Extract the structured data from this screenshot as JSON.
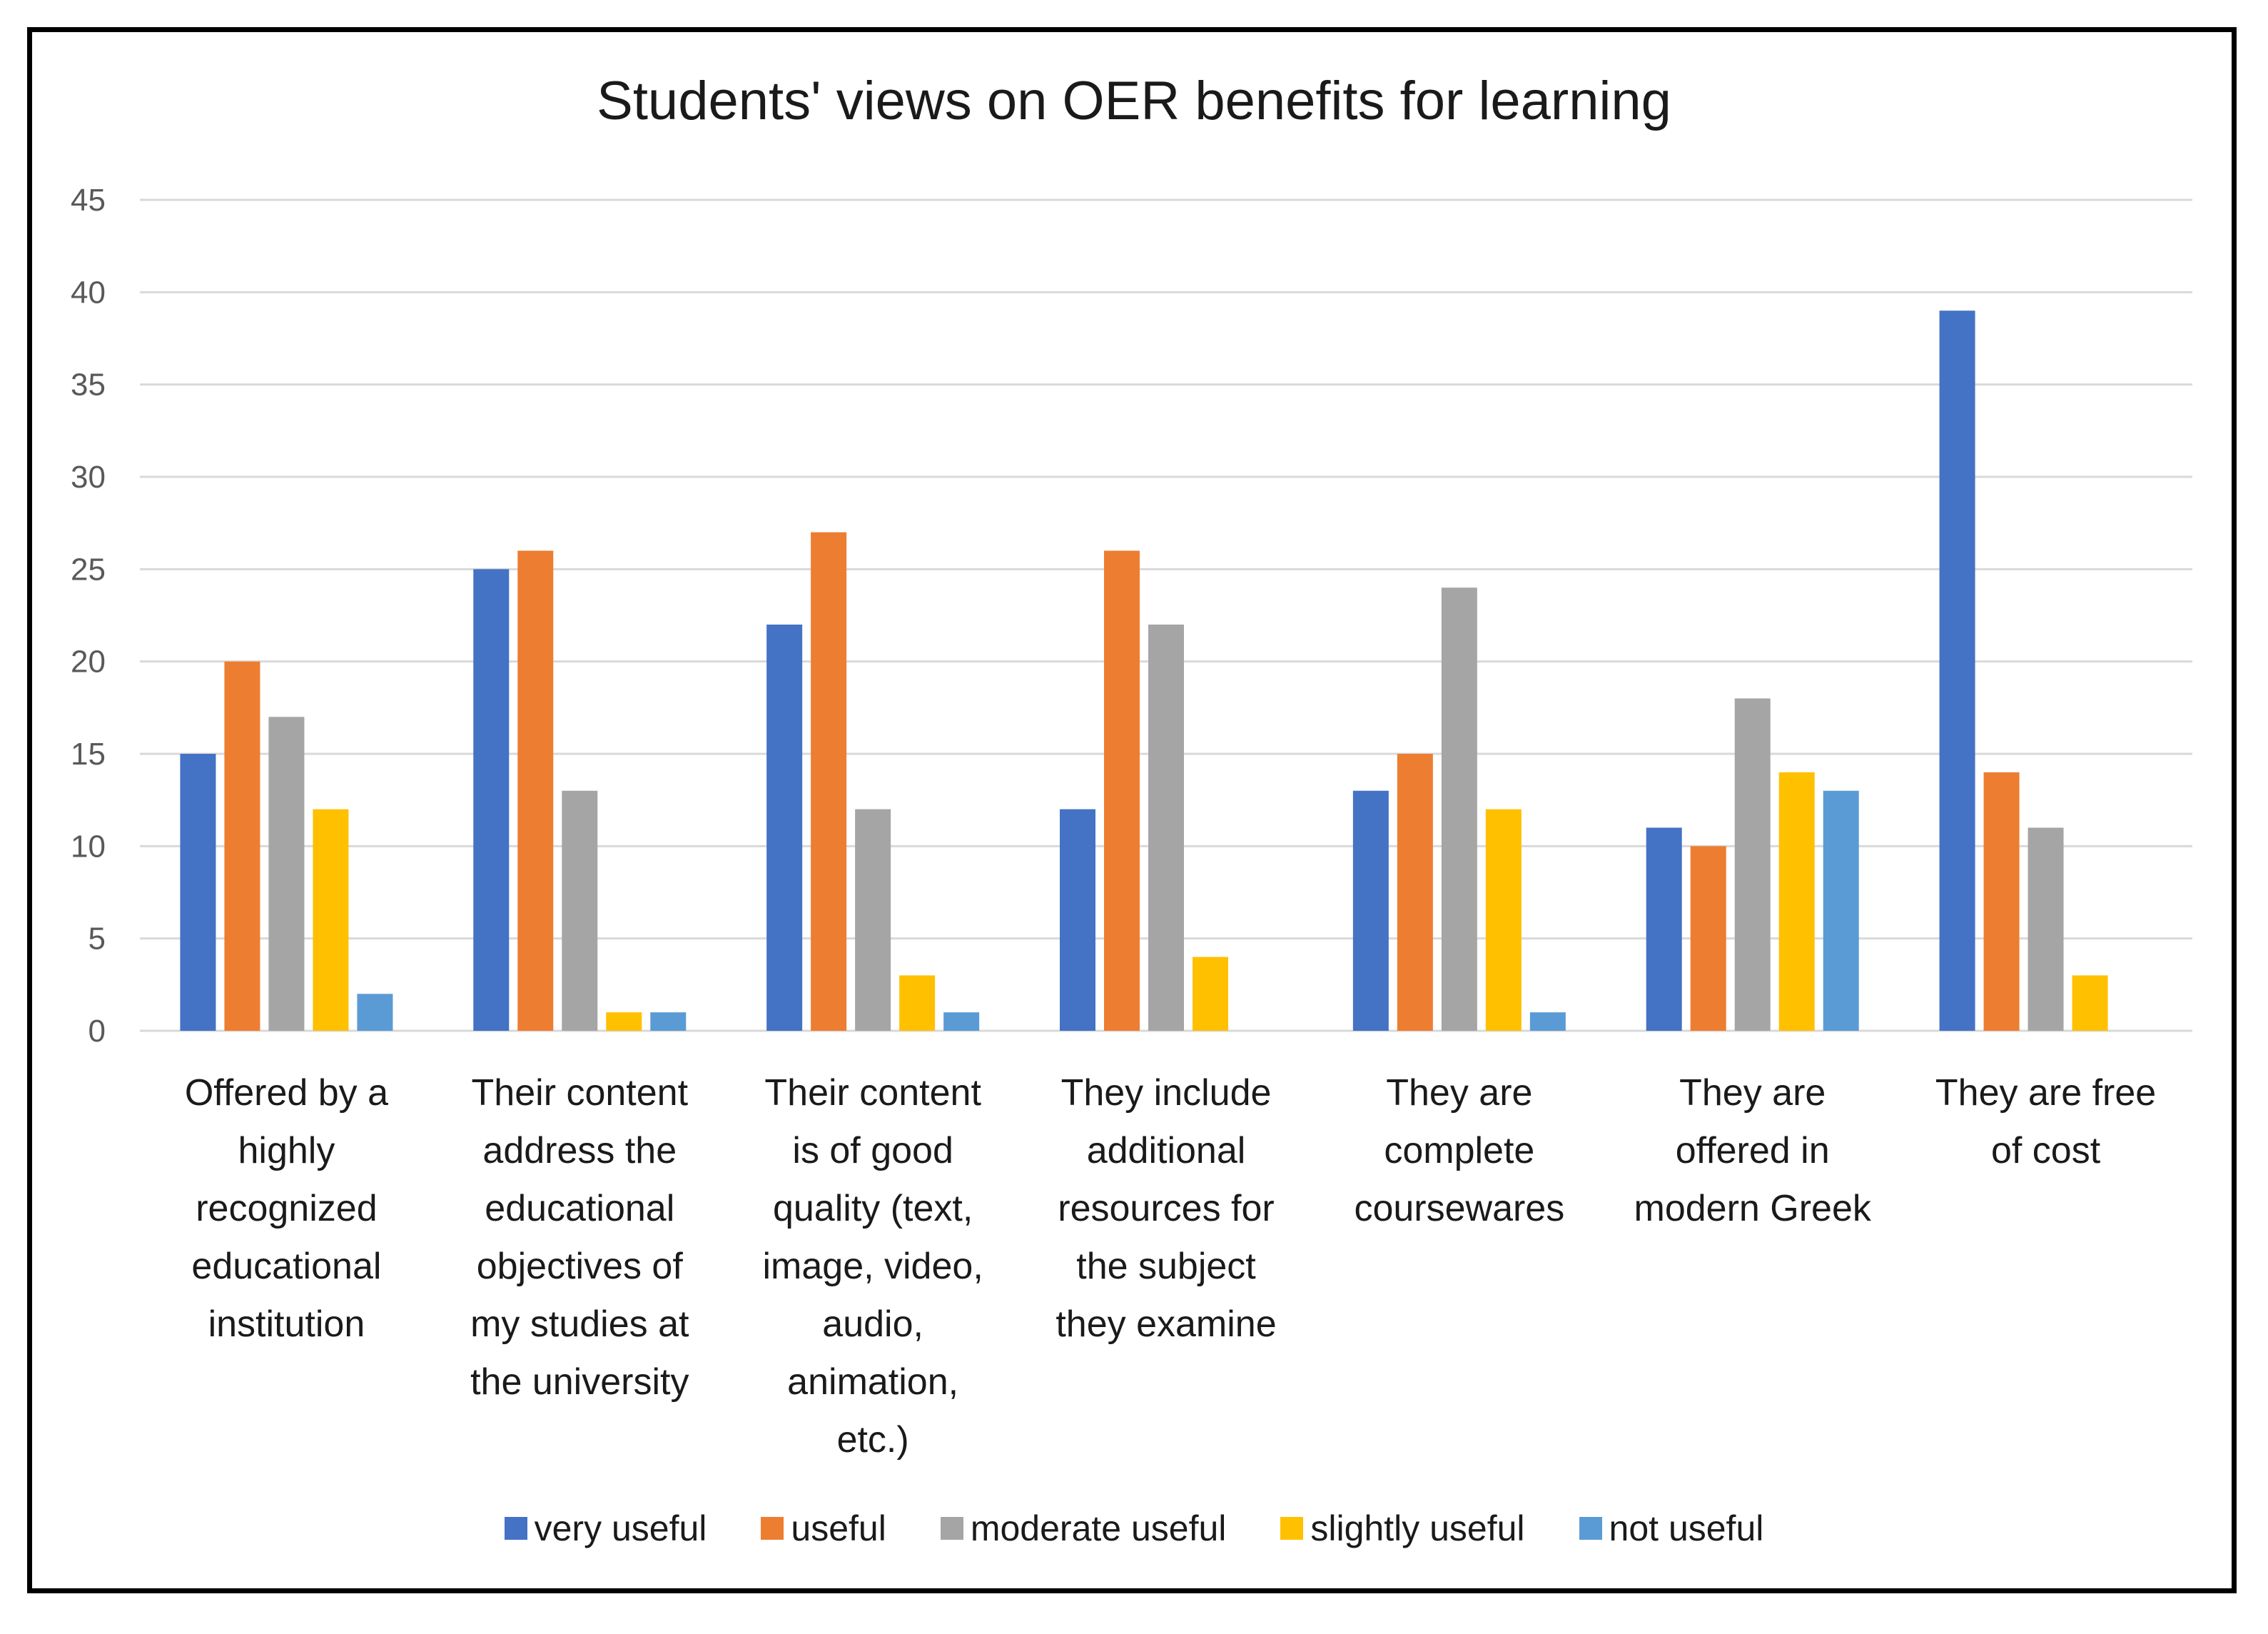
{
  "chart_data": {
    "type": "bar",
    "title": "Students' views on OER benefits for learning",
    "xlabel": "",
    "ylabel": "",
    "ylim": [
      0,
      45
    ],
    "yticks": [
      0,
      5,
      10,
      15,
      20,
      25,
      30,
      35,
      40,
      45
    ],
    "grid": true,
    "legend_position": "bottom",
    "categories": [
      "Offered by a highly recognized educational institution",
      "Their content address the educational objectives of my studies at the university",
      "Their content is of good quality (text, image, video, audio, animation, etc.)",
      "They include additional resources for the subject they examine",
      "They are complete coursewares",
      "They are offered in modern Greek",
      "They are free of cost"
    ],
    "category_lines": [
      [
        "Offered by a",
        "highly",
        "recognized",
        "educational",
        "institution"
      ],
      [
        "Their content",
        "address the",
        "educational",
        "objectives of",
        "my studies at",
        "the university"
      ],
      [
        "Their content",
        "is of good",
        "quality (text,",
        "image, video,",
        "audio,",
        "animation,",
        "etc.)"
      ],
      [
        "They include",
        "additional",
        "resources for",
        "the subject",
        "they examine"
      ],
      [
        "They are",
        "complete",
        "coursewares"
      ],
      [
        "They are",
        "offered in",
        "modern Greek"
      ],
      [
        "They are free",
        "of cost"
      ]
    ],
    "series": [
      {
        "name": "very useful",
        "color": "#4472C4",
        "values": [
          15,
          25,
          22,
          12,
          13,
          11,
          39
        ]
      },
      {
        "name": "useful",
        "color": "#ED7D31",
        "values": [
          20,
          26,
          27,
          26,
          15,
          10,
          14
        ]
      },
      {
        "name": "moderate useful",
        "color": "#A5A5A5",
        "values": [
          17,
          13,
          12,
          22,
          24,
          18,
          11
        ]
      },
      {
        "name": "slightly useful",
        "color": "#FFC000",
        "values": [
          12,
          1,
          3,
          4,
          12,
          14,
          3
        ]
      },
      {
        "name": "not useful",
        "color": "#5B9BD5",
        "values": [
          2,
          1,
          1,
          0,
          1,
          13,
          0
        ]
      }
    ]
  }
}
